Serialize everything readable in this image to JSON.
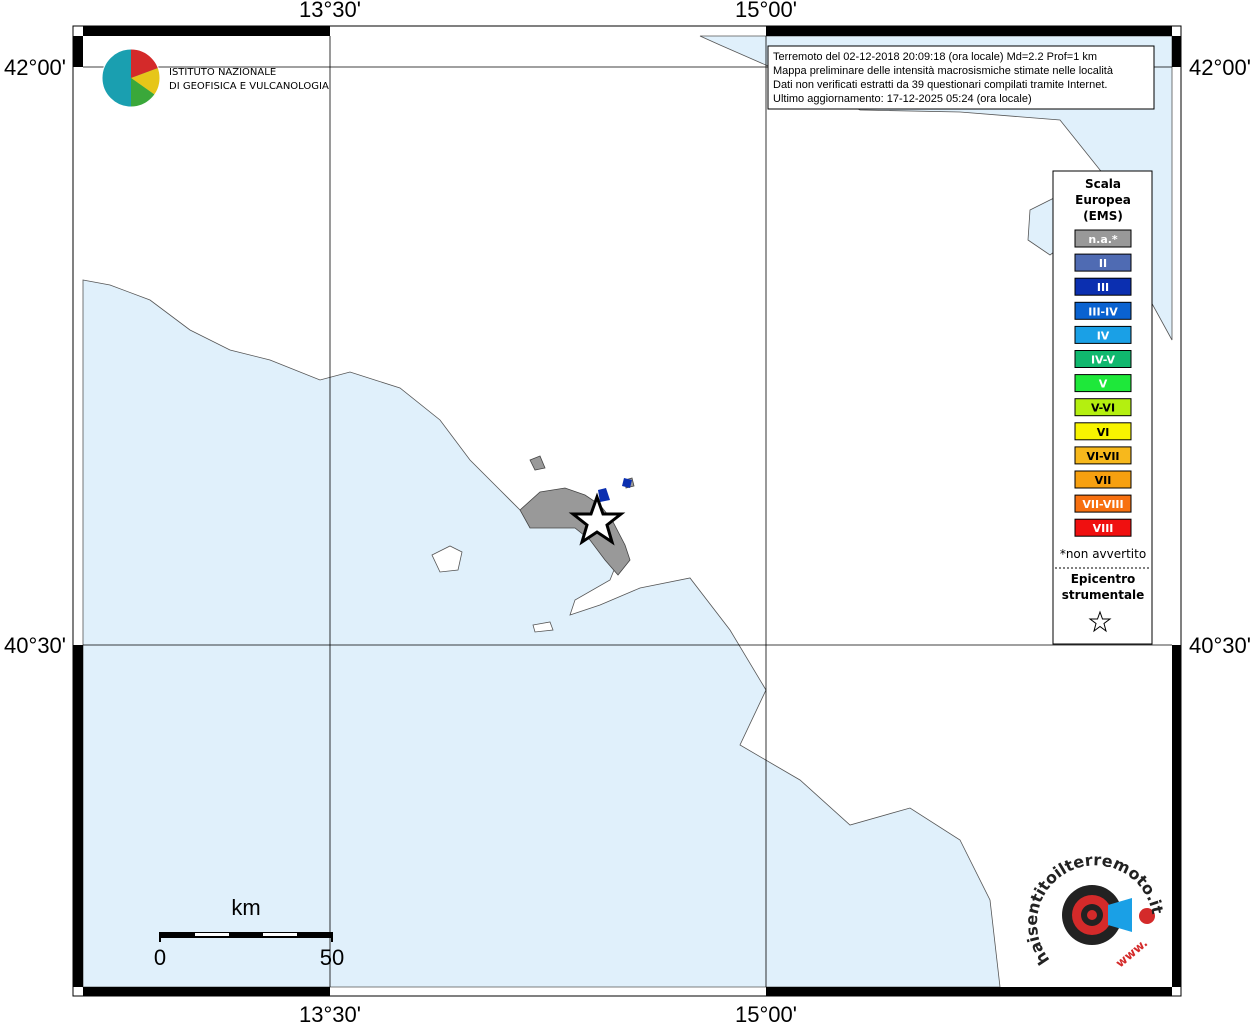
{
  "logo": {
    "line1": "ISTITUTO NAZIONALE",
    "line2": "DI GEOFISICA E VULCANOLOGIA"
  },
  "info": [
    "Terremoto del 02-12-2018 20:09:18 (ora locale) Md=2.2 Prof=1 km",
    "Mappa preliminare delle intensità macrosismiche stimate nelle località",
    "Dati non verificati estratti da 39 questionari compilati tramite Internet.",
    "Ultimo aggiornamento: 17-12-2025 05:24 (ora locale)"
  ],
  "grid": {
    "longitudes": [
      "13°30'",
      "15°00'"
    ],
    "latitudes": [
      "42°00'",
      "40°30'"
    ]
  },
  "legend": {
    "title": [
      "Scala",
      "Europea",
      "(EMS)"
    ],
    "items": [
      {
        "label": "n.a.*",
        "color": "#999999"
      },
      {
        "label": "II",
        "color": "#4f6bb3"
      },
      {
        "label": "III",
        "color": "#0b2fb0"
      },
      {
        "label": "III-IV",
        "color": "#0a62d0"
      },
      {
        "label": "IV",
        "color": "#1aa0e6"
      },
      {
        "label": "IV-V",
        "color": "#10b86e"
      },
      {
        "label": "V",
        "color": "#1ee83a"
      },
      {
        "label": "V-VI",
        "color": "#b4ef10"
      },
      {
        "label": "VI",
        "color": "#f8f400"
      },
      {
        "label": "VI-VII",
        "color": "#f7b81c"
      },
      {
        "label": "VII",
        "color": "#f7a010"
      },
      {
        "label": "VII-VIII",
        "color": "#f77010"
      },
      {
        "label": "VIII",
        "color": "#f01010"
      }
    ],
    "note": "*non avvertito",
    "epicenter": [
      "Epicentro",
      "strumentale"
    ]
  },
  "scale_bar": {
    "unit": "km",
    "start": "0",
    "end": "50"
  },
  "badge": {
    "site": "haisentitoilterremoto.it",
    "prefix": "www."
  }
}
